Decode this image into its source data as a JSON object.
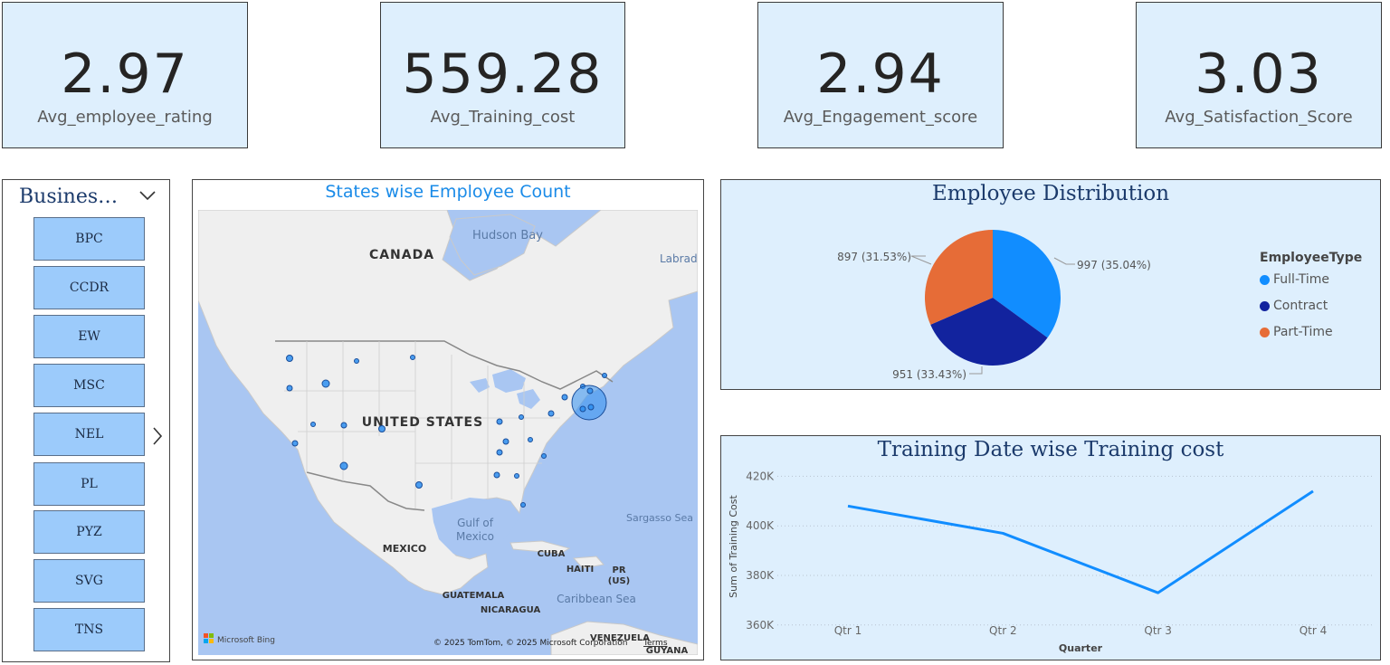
{
  "kpis": [
    {
      "value": "2.97",
      "label": "Avg_employee_rating"
    },
    {
      "value": "559.28",
      "label": "Avg_Training_cost"
    },
    {
      "value": "2.94",
      "label": "Avg_Engagement_score"
    },
    {
      "value": "3.03",
      "label": "Avg_Satisfaction_Score"
    }
  ],
  "slicer": {
    "title": "Busines…",
    "items": [
      "BPC",
      "CCDR",
      "EW",
      "MSC",
      "NEL",
      "PL",
      "PYZ",
      "SVG",
      "TNS"
    ]
  },
  "map": {
    "title": "States wise Employee Count",
    "labels": {
      "hudson_bay": "Hudson Bay",
      "canada": "CANADA",
      "labrador": "Labrad",
      "united_states": "UNITED STATES",
      "gulf": "Gulf of",
      "gulf2": "Mexico",
      "sargasso": "Sargasso Sea",
      "mexico": "MEXICO",
      "cuba": "CUBA",
      "haiti": "HAITI",
      "pr": "PR",
      "us": "(US)",
      "caribbean": "Caribbean Sea",
      "guatemala": "GUATEMALA",
      "nicaragua": "NICARAGUA",
      "venezuela": "VENEZUELA",
      "guyana": "GUYANA"
    },
    "attribution": "© 2025 TomTom, © 2025 Microsoft Corporation",
    "terms": "Terms",
    "bing": "Microsoft Bing",
    "colors": {
      "water": "#a9c6f2",
      "land": "#efefef",
      "bubble": "#2d8ef0"
    }
  },
  "pie": {
    "title": "Employee Distribution",
    "legend_title": "EmployeeType",
    "chart_data": {
      "type": "pie",
      "slices": [
        {
          "name": "Full-Time",
          "value": 997,
          "label": "997 (35.04%)",
          "color": "#118dff"
        },
        {
          "name": "Contract",
          "value": 951,
          "label": "951 (33.43%)",
          "color": "#12239e"
        },
        {
          "name": "Part-Time",
          "value": 897,
          "label": "897 (31.53%)",
          "color": "#e66c37"
        }
      ]
    }
  },
  "line": {
    "title": "Training Date wise Training cost",
    "chart_data": {
      "type": "line",
      "x": [
        "Qtr 1",
        "Qtr 2",
        "Qtr 3",
        "Qtr 4"
      ],
      "series": [
        {
          "values": [
            408000,
            397000,
            373000,
            414000
          ]
        }
      ],
      "xlabel": "Quarter",
      "ylabel": "Sum of Training Cost",
      "yticks": [
        "420K",
        "400K",
        "380K",
        "360K"
      ],
      "ytick_values": [
        420000,
        400000,
        380000,
        360000
      ],
      "ylim": [
        357000,
        426000
      ],
      "color": "#118dff",
      "grid": true
    }
  }
}
